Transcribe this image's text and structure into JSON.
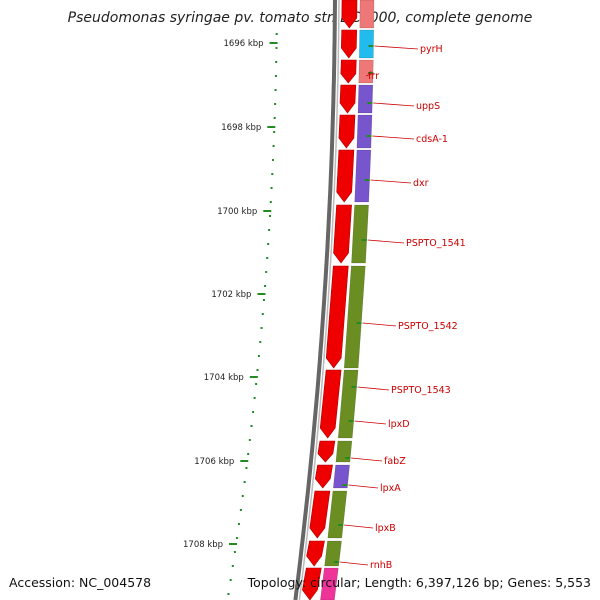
{
  "header": {
    "title": "Pseudomonas syringae pv. tomato str. DC3000, complete genome"
  },
  "footer": {
    "accession": "Accession: NC_004578",
    "summary": "Topology: circular; Length: 6,397,126 bp; Genes: 5,553"
  },
  "colors": {
    "tick": "#228b22",
    "label": "#cc0000",
    "strand": "#ee0000",
    "backbone": "#777777",
    "cog_cyan": "#22bbee",
    "cog_salmon": "#ee7777",
    "cog_purple": "#7755cc",
    "cog_olive": "#6b8e23",
    "cog_magenta": "#ee3399"
  },
  "scale": {
    "unit": "kbp",
    "labels": [
      "1696 kbp",
      "1698 kbp",
      "1700 kbp",
      "1702 kbp",
      "1704 kbp",
      "1706 kbp",
      "1708 kbp"
    ]
  },
  "genes": [
    {
      "name": "pyrH"
    },
    {
      "name": "frr"
    },
    {
      "name": "uppS"
    },
    {
      "name": "cdsA-1"
    },
    {
      "name": "dxr"
    },
    {
      "name": "PSPTO_1541"
    },
    {
      "name": "PSPTO_1542"
    },
    {
      "name": "PSPTO_1543"
    },
    {
      "name": "lpxD"
    },
    {
      "name": "fabZ"
    },
    {
      "name": "lpxA"
    },
    {
      "name": "lpxB"
    },
    {
      "name": "rnhB"
    }
  ]
}
